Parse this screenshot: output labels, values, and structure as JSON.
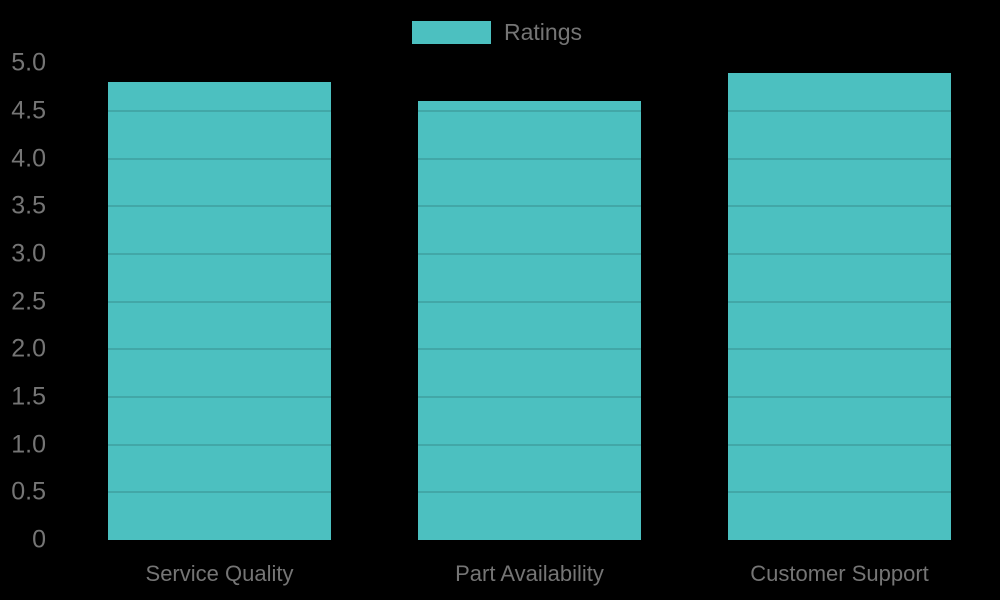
{
  "legend": {
    "label": "Ratings"
  },
  "colors": {
    "background": "#000000",
    "bar": "#4CC0C0",
    "text": "#757575",
    "gridline_overlay": "rgba(0,0,0,0.13)"
  },
  "chart_data": {
    "type": "bar",
    "categories": [
      "Service Quality",
      "Part Availability",
      "Customer Support"
    ],
    "values": [
      4.8,
      4.6,
      4.9
    ],
    "series_name": "Ratings",
    "title": "",
    "xlabel": "",
    "ylabel": "",
    "ylim": [
      0,
      5
    ],
    "ytick_step": 0.5,
    "ytick_labels": [
      "0",
      "0.5",
      "1.0",
      "1.5",
      "2.0",
      "2.5",
      "3.0",
      "3.5",
      "4.0",
      "4.5",
      "5.0"
    ],
    "grid": true,
    "legend_position": "top-center"
  }
}
